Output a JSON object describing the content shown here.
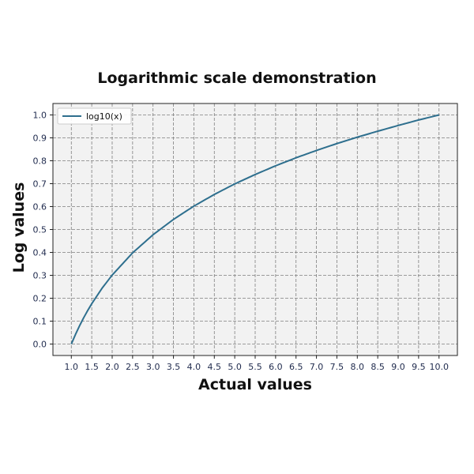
{
  "chart_data": {
    "type": "line",
    "title": "Logarithmic scale demonstration",
    "xlabel": "Actual values",
    "ylabel": "Log values",
    "xlim": [
      0.55,
      10.45
    ],
    "ylim": [
      -0.05,
      1.05
    ],
    "xticks": [
      1.0,
      1.5,
      2.0,
      2.5,
      3.0,
      3.5,
      4.0,
      4.5,
      5.0,
      5.5,
      6.0,
      6.5,
      7.0,
      7.5,
      8.0,
      8.5,
      9.0,
      9.5,
      10.0
    ],
    "xtick_labels": [
      "1.0",
      "1.5",
      "2.0",
      "2.5",
      "3.0",
      "3.5",
      "4.0",
      "4.5",
      "5.0",
      "5.5",
      "6.0",
      "6.5",
      "7.0",
      "7.5",
      "8.0",
      "8.5",
      "9.0",
      "9.5",
      "10.0"
    ],
    "yticks": [
      0.0,
      0.1,
      0.2,
      0.3,
      0.4,
      0.5,
      0.6,
      0.7,
      0.8,
      0.9,
      1.0
    ],
    "ytick_labels": [
      "0.0",
      "0.1",
      "0.2",
      "0.3",
      "0.4",
      "0.5",
      "0.6",
      "0.7",
      "0.8",
      "0.9",
      "1.0"
    ],
    "grid": true,
    "legend_position": "upper-left",
    "series": [
      {
        "name": "log10(x)",
        "color": "#2e6f8e",
        "x": [
          1.0,
          1.1,
          1.2,
          1.3,
          1.4,
          1.5,
          1.75,
          2.0,
          2.5,
          3.0,
          3.5,
          4.0,
          4.5,
          5.0,
          5.5,
          6.0,
          6.5,
          7.0,
          7.5,
          8.0,
          8.5,
          9.0,
          9.5,
          10.0
        ],
        "y": [
          0.0,
          0.041,
          0.079,
          0.114,
          0.146,
          0.176,
          0.243,
          0.301,
          0.398,
          0.477,
          0.544,
          0.602,
          0.653,
          0.699,
          0.74,
          0.778,
          0.813,
          0.845,
          0.875,
          0.903,
          0.929,
          0.954,
          0.978,
          1.0
        ]
      }
    ],
    "plot_background": "#f2f2f2",
    "grid_color": "#7f7f7f"
  }
}
